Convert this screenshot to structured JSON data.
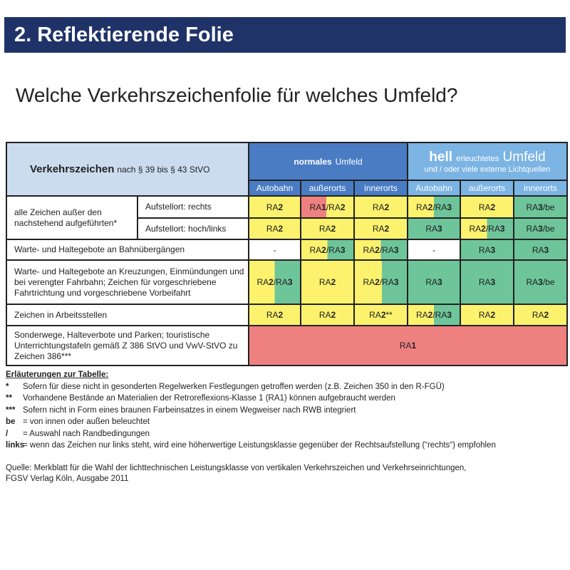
{
  "title": "2. Reflektierende Folie",
  "question": "Welche Verkehrszeichenfolie für welches Umfeld?",
  "table": {
    "header_left_bold": "Verkehrszeichen",
    "header_left_rest": "nach § 39 bis § 43 StVO",
    "normal_bold": "normales",
    "normal_rest": "Umfeld",
    "hell_bold": "hell",
    "hell_small": "erleuchtetes",
    "hell_rest": "Umfeld",
    "hell_sub": "und / oder viele externe Lichtquellen",
    "subheaders": [
      "Autobahn",
      "außerorts",
      "innerorts",
      "Autobahn",
      "außerorts",
      "innerorts"
    ],
    "group1_label": "alle Zeichen außer den nachstehend aufgeführten*",
    "rows": [
      {
        "label": "Aufstellort: rechts",
        "cells": [
          "RA2",
          "RA1/RA2",
          "RA2",
          "RA2/RA3",
          "RA2",
          "RA3/be"
        ],
        "colors": [
          "y",
          "ry",
          "y",
          "yg",
          "y",
          "g"
        ]
      },
      {
        "label": "Aufstellort: hoch/links",
        "cells": [
          "RA2",
          "RA2",
          "RA2",
          "RA3",
          "RA2/RA3",
          "RA3/be"
        ],
        "colors": [
          "y",
          "y",
          "y",
          "g",
          "yg",
          "g"
        ]
      },
      {
        "label": "Warte- und Haltegebote an Bahnübergängen",
        "cells": [
          "-",
          "RA2/RA3",
          "RA2/RA3",
          "-",
          "RA3",
          "RA3"
        ],
        "colors": [
          "w",
          "yg",
          "yg",
          "w",
          "g",
          "g"
        ]
      },
      {
        "label": "Warte- und Haltegebote an Kreuzungen, Einmündungen und bei verengter Fahrbahn; Zeichen für vorgeschriebene Fahrtrichtung und vorgeschriebene Vorbeifahrt",
        "cells": [
          "RA2/RA3",
          "RA2",
          "RA2/RA3",
          "RA3",
          "RA3",
          "RA3/be"
        ],
        "colors": [
          "yg",
          "y",
          "yg2",
          "g",
          "g",
          "g"
        ]
      },
      {
        "label": "Zeichen in Arbeitsstellen",
        "cells": [
          "RA2",
          "RA2",
          "RA2**",
          "RA2/RA3",
          "RA2",
          "RA2"
        ],
        "colors": [
          "y",
          "y",
          "y",
          "yg",
          "y",
          "y"
        ]
      },
      {
        "label": "Sonderwege, Halteverbote und Parken; touristische Unterrichtungstafeln gemäß Z 386 StVO und VwV-StVO zu Zeichen 386***",
        "cells": [
          "RA1"
        ],
        "colors": [
          "r"
        ]
      }
    ]
  },
  "notes": {
    "heading": "Erläuterungen zur Tabelle:",
    "items": [
      {
        "key": "*",
        "text": "Sofern für diese nicht in gesonderten Regelwerken Festlegungen getroffen werden (z.B. Zeichen 350 in den R-FGÜ)"
      },
      {
        "key": "**",
        "text": "Vorhandene Bestände an Materialien der Retroreflexions-Klasse 1 (RA1) können aufgebraucht werden"
      },
      {
        "key": "***",
        "text": "Sofern nicht in Form eines braunen Farbeinsatzes in einem Wegweiser nach RWB integriert"
      },
      {
        "key": "be",
        "text": "= von innen oder außen beleuchtet"
      },
      {
        "key": "/",
        "text": "= Auswahl nach Randbedingungen"
      },
      {
        "key": "links",
        "text": "= wenn das Zeichen nur links steht, wird eine höherwertige Leistungsklasse gegenüber der Rechtsaufstellung (“rechts“) empfohlen"
      }
    ]
  },
  "source_line1": "Quelle: Merkblatt für die Wahl der lichttechnischen Leistungsklasse von vertikalen Verkehrszeichen und Verkehrseinrichtungen,",
  "source_line2": "FGSV Verlag Köln, Ausgabe 2011",
  "colors": {
    "title_bar": "#1f3369",
    "normal": "#4a7cc4",
    "hell": "#7cb4e4",
    "yellow": "#fdf26d",
    "green": "#6ec59a",
    "red": "#ef8080"
  }
}
